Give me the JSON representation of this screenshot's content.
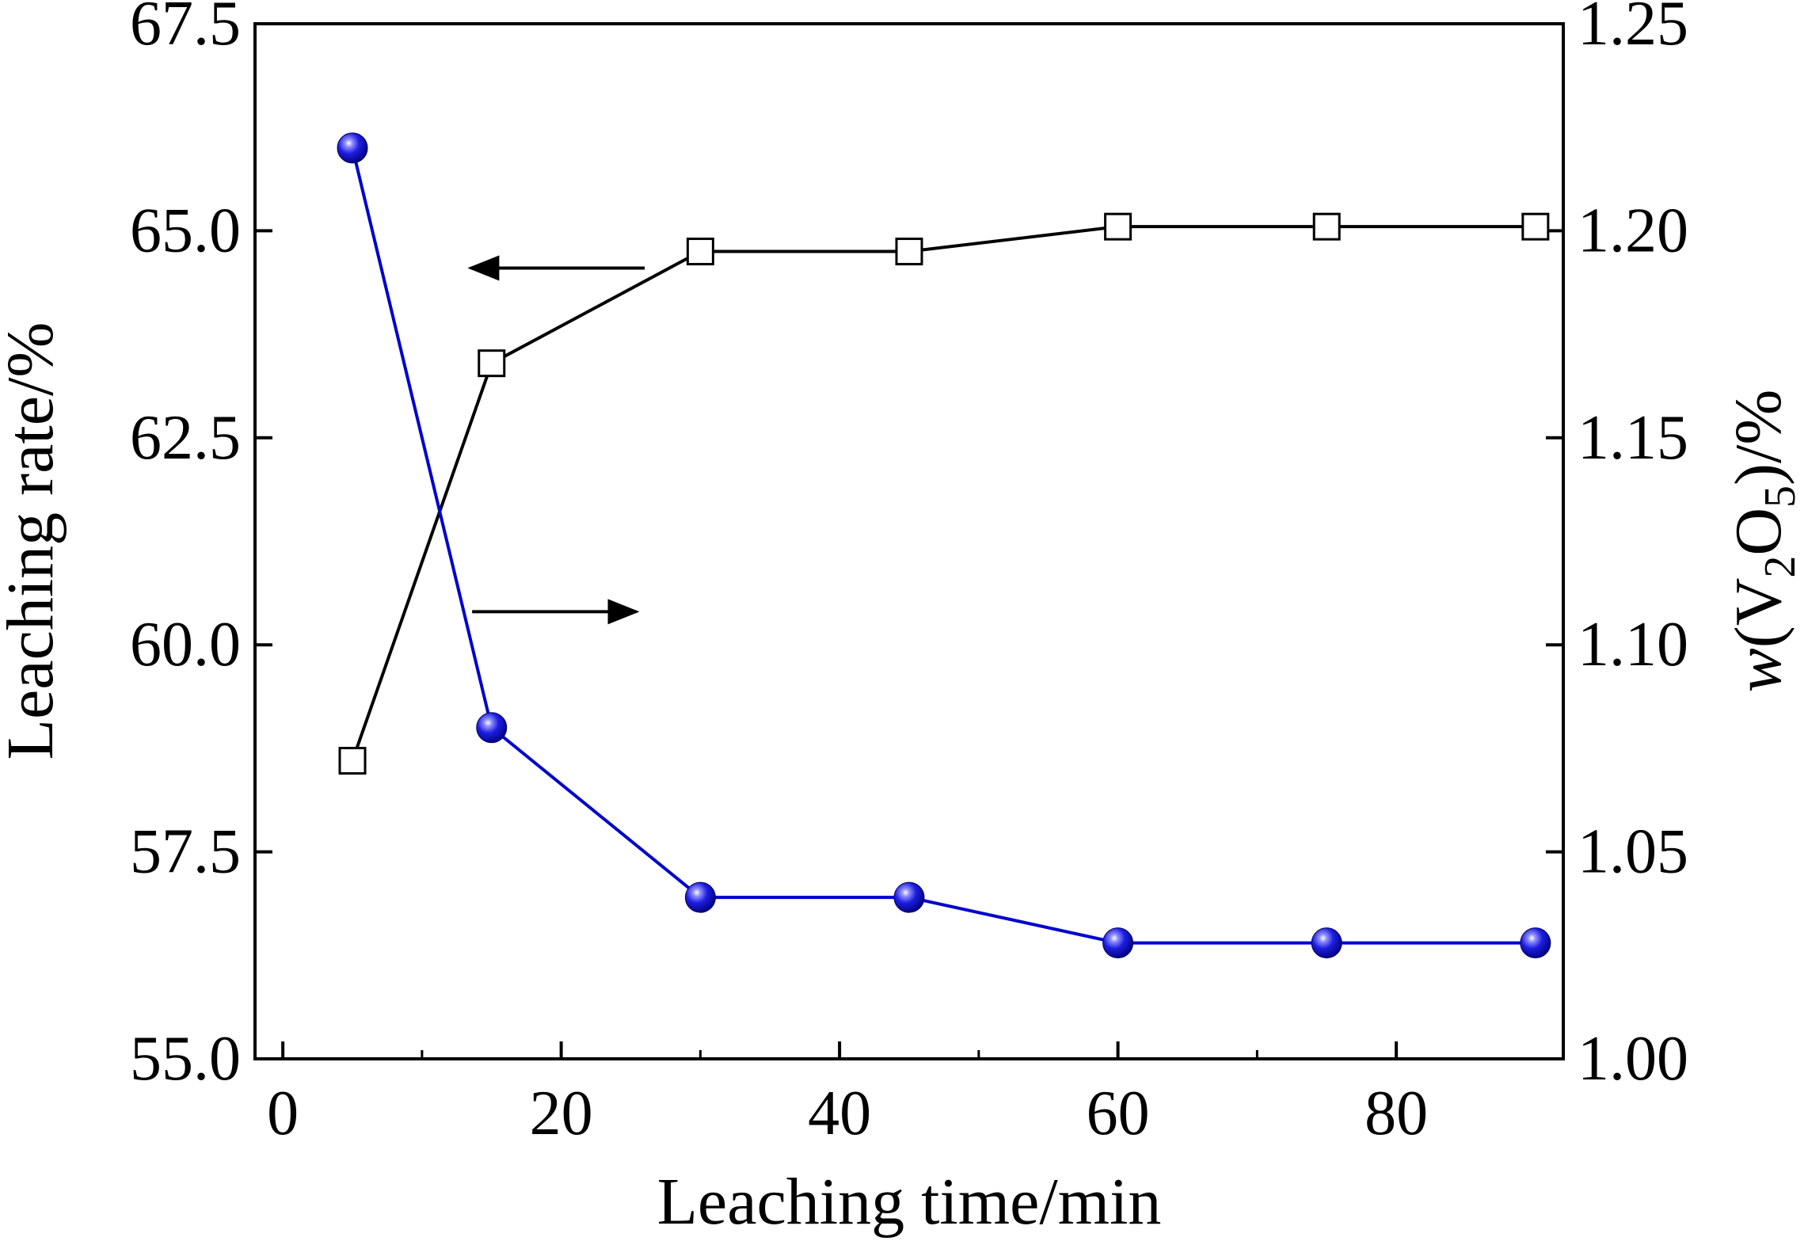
{
  "chart_data": {
    "type": "line",
    "x": [
      5,
      15,
      30,
      45,
      60,
      75,
      90
    ],
    "xlabel": "Leaching time/min",
    "xlim": [
      -2,
      92
    ],
    "xticks": [
      0,
      20,
      40,
      60,
      80
    ],
    "xtick_labels": [
      "0",
      "20",
      "40",
      "60",
      "80"
    ],
    "ylabel": "Leaching rate/%",
    "ylim": [
      55.0,
      67.5
    ],
    "yticks": [
      55.0,
      57.5,
      60.0,
      62.5,
      65.0,
      67.5
    ],
    "ytick_labels": [
      "55.0",
      "57.5",
      "60.0",
      "62.5",
      "65.0",
      "67.5"
    ],
    "y2label": {
      "prefix": "w",
      "paren_open": "(V",
      "sub1": "2",
      "mid": "O",
      "sub2": "5",
      "suffix": ")/%"
    },
    "y2lim": [
      1.0,
      1.25
    ],
    "y2ticks": [
      1.0,
      1.05,
      1.1,
      1.15,
      1.2,
      1.25
    ],
    "y2tick_labels": [
      "1.00",
      "1.05",
      "1.10",
      "1.15",
      "1.20",
      "1.25"
    ],
    "series": [
      {
        "axis": "left",
        "values": [
          58.6,
          63.4,
          64.75,
          64.75,
          65.05,
          65.05,
          65.05
        ],
        "color": "#000000",
        "marker": "open-square"
      },
      {
        "axis": "right",
        "values": [
          1.22,
          1.08,
          1.039,
          1.039,
          1.028,
          1.028,
          1.028
        ],
        "color": "#0000cc",
        "marker": "filled-sphere"
      }
    ],
    "annotations": [
      {
        "type": "arrow",
        "direction": "left",
        "points_to": "left-axis"
      },
      {
        "type": "arrow",
        "direction": "right",
        "points_to": "right-axis"
      }
    ],
    "grid": false,
    "legend": "none"
  }
}
